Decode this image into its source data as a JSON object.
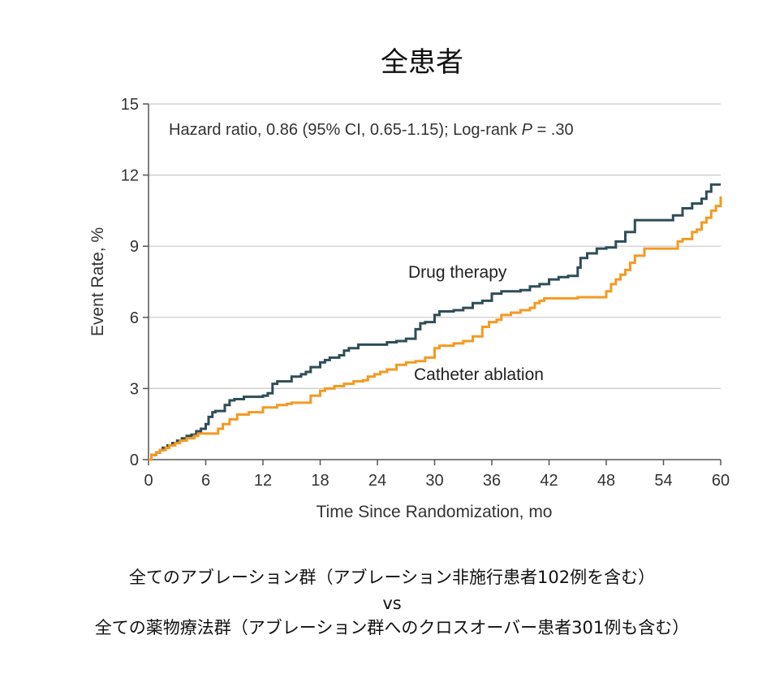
{
  "chart_data": {
    "type": "line",
    "title": "全患者",
    "xlabel": "Time Since Randomization, mo",
    "ylabel": "Event Rate, %",
    "xlim": [
      0,
      60
    ],
    "ylim": [
      0,
      15
    ],
    "xticks": [
      0,
      6,
      12,
      18,
      24,
      30,
      36,
      42,
      48,
      54,
      60
    ],
    "yticks": [
      0,
      3,
      6,
      9,
      12,
      15
    ],
    "grid": "horizontal",
    "annotation": {
      "prefix": "Hazard ratio, 0.86 (95% CI, 0.65-1.15); Log-rank ",
      "p_symbol": "P",
      "suffix": " = .30"
    },
    "series": [
      {
        "name": "Drug therapy",
        "color": "#2e4d57",
        "points": [
          [
            0,
            0
          ],
          [
            0.3,
            0.2
          ],
          [
            0.8,
            0.3
          ],
          [
            1.2,
            0.4
          ],
          [
            1.5,
            0.5
          ],
          [
            2,
            0.6
          ],
          [
            2.5,
            0.7
          ],
          [
            3,
            0.8
          ],
          [
            3.5,
            0.9
          ],
          [
            4,
            1.0
          ],
          [
            4.5,
            1.05
          ],
          [
            5,
            1.2
          ],
          [
            5.5,
            1.3
          ],
          [
            6,
            1.5
          ],
          [
            6.3,
            1.8
          ],
          [
            6.7,
            2.0
          ],
          [
            7,
            2.05
          ],
          [
            8,
            2.3
          ],
          [
            8.5,
            2.5
          ],
          [
            9,
            2.55
          ],
          [
            10,
            2.65
          ],
          [
            12,
            2.7
          ],
          [
            12.5,
            2.8
          ],
          [
            13,
            3.2
          ],
          [
            13.5,
            3.3
          ],
          [
            15,
            3.5
          ],
          [
            16,
            3.6
          ],
          [
            16.5,
            3.7
          ],
          [
            17,
            3.9
          ],
          [
            18,
            4.1
          ],
          [
            18.5,
            4.2
          ],
          [
            19,
            4.3
          ],
          [
            20,
            4.4
          ],
          [
            20.5,
            4.6
          ],
          [
            21,
            4.7
          ],
          [
            22,
            4.85
          ],
          [
            24,
            4.85
          ],
          [
            25,
            4.95
          ],
          [
            26,
            5.0
          ],
          [
            27,
            5.1
          ],
          [
            28,
            5.5
          ],
          [
            28.5,
            5.75
          ],
          [
            29,
            5.8
          ],
          [
            30,
            6.1
          ],
          [
            30.5,
            6.25
          ],
          [
            32,
            6.3
          ],
          [
            33,
            6.4
          ],
          [
            34,
            6.6
          ],
          [
            35,
            6.7
          ],
          [
            36,
            7.0
          ],
          [
            37,
            7.1
          ],
          [
            39,
            7.15
          ],
          [
            40,
            7.3
          ],
          [
            41,
            7.4
          ],
          [
            42,
            7.6
          ],
          [
            43,
            7.7
          ],
          [
            44,
            7.75
          ],
          [
            45,
            8.1
          ],
          [
            45.3,
            8.5
          ],
          [
            46,
            8.7
          ],
          [
            47,
            8.9
          ],
          [
            48,
            8.95
          ],
          [
            49,
            9.2
          ],
          [
            50,
            9.6
          ],
          [
            51,
            10.1
          ],
          [
            52,
            10.1
          ],
          [
            54,
            10.1
          ],
          [
            55,
            10.3
          ],
          [
            56,
            10.6
          ],
          [
            57,
            10.8
          ],
          [
            58,
            11.0
          ],
          [
            58.5,
            11.3
          ],
          [
            59,
            11.6
          ],
          [
            60,
            11.6
          ]
        ]
      },
      {
        "name": "Catheter ablation",
        "color": "#f39a22",
        "points": [
          [
            0,
            0
          ],
          [
            0.3,
            0.2
          ],
          [
            0.8,
            0.3
          ],
          [
            1.2,
            0.4
          ],
          [
            1.8,
            0.5
          ],
          [
            2.2,
            0.6
          ],
          [
            2.8,
            0.7
          ],
          [
            3.3,
            0.8
          ],
          [
            4,
            0.9
          ],
          [
            4.8,
            1.0
          ],
          [
            5.2,
            1.1
          ],
          [
            7,
            1.1
          ],
          [
            7.3,
            1.3
          ],
          [
            7.8,
            1.5
          ],
          [
            8.5,
            1.7
          ],
          [
            9.3,
            1.9
          ],
          [
            10.5,
            2.0
          ],
          [
            12,
            2.2
          ],
          [
            13.5,
            2.3
          ],
          [
            14.5,
            2.35
          ],
          [
            15,
            2.4
          ],
          [
            16.5,
            2.4
          ],
          [
            17,
            2.7
          ],
          [
            18,
            2.9
          ],
          [
            18.5,
            3.0
          ],
          [
            19.5,
            3.1
          ],
          [
            20.5,
            3.2
          ],
          [
            21.5,
            3.3
          ],
          [
            22.5,
            3.35
          ],
          [
            23,
            3.5
          ],
          [
            23.7,
            3.6
          ],
          [
            24.3,
            3.7
          ],
          [
            25,
            3.8
          ],
          [
            26,
            4.0
          ],
          [
            27,
            4.1
          ],
          [
            28,
            4.15
          ],
          [
            29,
            4.3
          ],
          [
            30,
            4.7
          ],
          [
            30.5,
            4.8
          ],
          [
            32,
            4.9
          ],
          [
            33,
            5.0
          ],
          [
            34,
            5.2
          ],
          [
            35,
            5.6
          ],
          [
            35.7,
            5.8
          ],
          [
            36.5,
            5.9
          ],
          [
            37,
            6.1
          ],
          [
            38,
            6.2
          ],
          [
            39,
            6.3
          ],
          [
            40,
            6.4
          ],
          [
            40.5,
            6.6
          ],
          [
            41,
            6.7
          ],
          [
            41.5,
            6.8
          ],
          [
            42,
            6.8
          ],
          [
            45,
            6.85
          ],
          [
            47.5,
            6.85
          ],
          [
            48,
            7.1
          ],
          [
            48.5,
            7.4
          ],
          [
            49,
            7.6
          ],
          [
            49.5,
            7.8
          ],
          [
            50,
            8.0
          ],
          [
            50.5,
            8.3
          ],
          [
            51,
            8.6
          ],
          [
            52,
            8.9
          ],
          [
            53,
            8.9
          ],
          [
            55,
            8.9
          ],
          [
            55.5,
            9.2
          ],
          [
            56,
            9.3
          ],
          [
            57,
            9.6
          ],
          [
            57.5,
            9.7
          ],
          [
            58,
            10.0
          ],
          [
            58.5,
            10.2
          ],
          [
            59,
            10.5
          ],
          [
            59.5,
            10.7
          ],
          [
            60,
            11.1
          ]
        ]
      }
    ]
  },
  "captions": {
    "line1": "全てのアブレーション群（アブレーション非施行患者102例を含む）",
    "line2": "vs",
    "line3": "全ての薬物療法群（アブレーション群へのクロスオーバー患者301例も含む）"
  }
}
